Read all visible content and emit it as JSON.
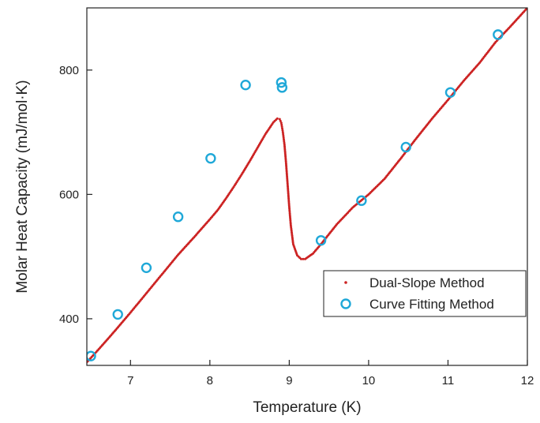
{
  "chart_data": {
    "type": "scatter",
    "title": "",
    "xlabel": "Temperature (K)",
    "ylabel": "Molar Heat Capacity (mJ/mol·K)",
    "xlim": [
      6.45,
      12.0
    ],
    "ylim": [
      325,
      900
    ],
    "xticks": [
      7,
      8,
      9,
      10,
      11,
      12
    ],
    "xtick_labels": [
      "7",
      "8",
      "9",
      "10",
      "11",
      "12"
    ],
    "yticks": [
      400,
      600,
      800
    ],
    "ytick_labels": [
      "400",
      "600",
      "800"
    ],
    "grid": false,
    "legend_position": "bottom-right",
    "series": [
      {
        "name": "Dual-Slope Method",
        "marker": "dot",
        "color": "#cc2222",
        "points": [
          [
            6.45,
            330
          ],
          [
            6.6,
            351
          ],
          [
            6.8,
            380
          ],
          [
            7.0,
            410
          ],
          [
            7.2,
            441
          ],
          [
            7.4,
            472
          ],
          [
            7.6,
            503
          ],
          [
            7.8,
            531
          ],
          [
            8.0,
            560
          ],
          [
            8.1,
            575
          ],
          [
            8.2,
            593
          ],
          [
            8.3,
            612
          ],
          [
            8.4,
            632
          ],
          [
            8.5,
            653
          ],
          [
            8.6,
            675
          ],
          [
            8.7,
            697
          ],
          [
            8.8,
            716
          ],
          [
            8.85,
            722
          ],
          [
            8.88,
            721
          ],
          [
            8.9,
            715
          ],
          [
            8.92,
            700
          ],
          [
            8.94,
            680
          ],
          [
            8.96,
            650
          ],
          [
            8.98,
            615
          ],
          [
            9.0,
            580
          ],
          [
            9.02,
            550
          ],
          [
            9.05,
            520
          ],
          [
            9.1,
            502
          ],
          [
            9.15,
            496
          ],
          [
            9.2,
            496
          ],
          [
            9.3,
            505
          ],
          [
            9.4,
            520
          ],
          [
            9.6,
            552
          ],
          [
            9.8,
            579
          ],
          [
            10.0,
            600
          ],
          [
            10.2,
            625
          ],
          [
            10.4,
            657
          ],
          [
            10.6,
            690
          ],
          [
            10.8,
            722
          ],
          [
            11.0,
            752
          ],
          [
            11.2,
            783
          ],
          [
            11.4,
            812
          ],
          [
            11.6,
            845
          ],
          [
            11.8,
            872
          ],
          [
            12.0,
            900
          ]
        ]
      },
      {
        "name": "Curve Fitting Method",
        "marker": "open-circle",
        "color": "#1fa8d8",
        "points": [
          [
            6.5,
            340
          ],
          [
            6.84,
            407
          ],
          [
            7.2,
            482
          ],
          [
            7.6,
            564
          ],
          [
            8.01,
            658
          ],
          [
            8.45,
            776
          ],
          [
            8.9,
            780
          ],
          [
            8.91,
            772
          ],
          [
            9.4,
            526
          ],
          [
            9.91,
            590
          ],
          [
            10.47,
            676
          ],
          [
            11.03,
            764
          ],
          [
            11.63,
            857
          ]
        ]
      }
    ]
  }
}
